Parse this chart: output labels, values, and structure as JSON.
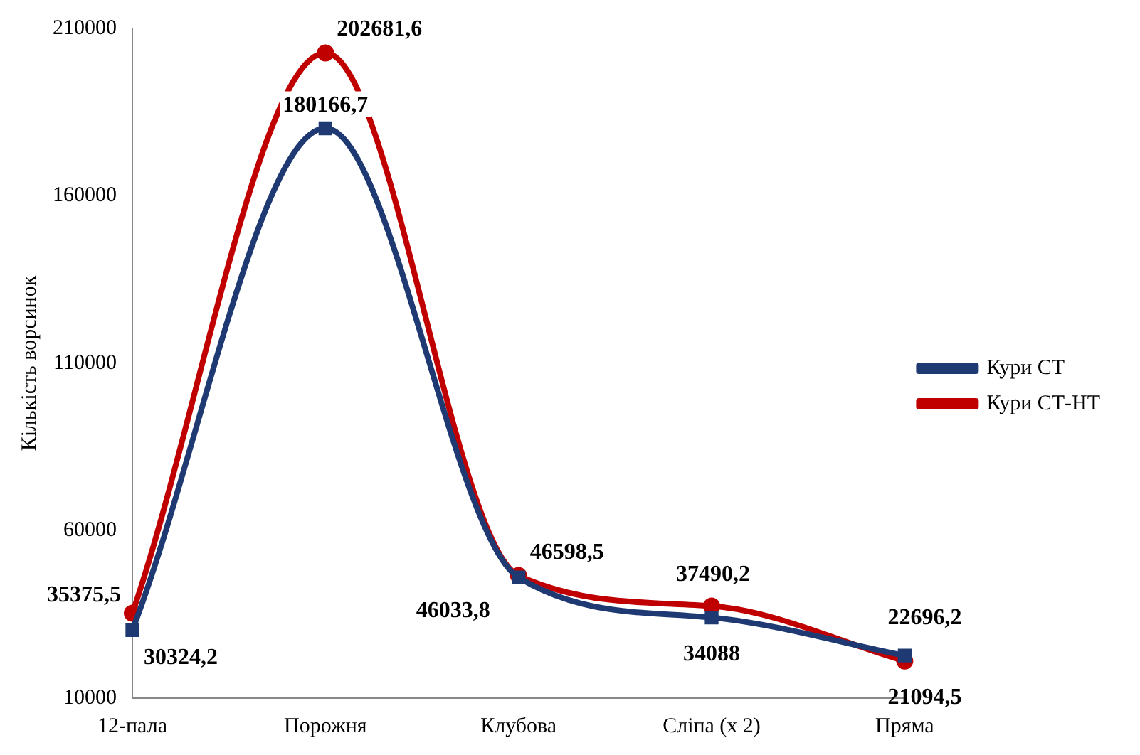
{
  "chart_data": {
    "type": "line",
    "ylabel": "Кількість ворсинок",
    "categories": [
      "12-пала",
      "Порожня",
      "Клубова",
      "Сліпа (х 2)",
      "Пряма"
    ],
    "series": [
      {
        "name": "Кури СТ",
        "color": "#1f3a73",
        "marker": "square",
        "values": [
          30324.2,
          180166.7,
          46033.8,
          34088,
          22696.2
        ],
        "value_labels": [
          "30324,2",
          "180166,7",
          "46033,8",
          "34088",
          "22696,2"
        ]
      },
      {
        "name": "Кури СТ-НТ",
        "color": "#c00000",
        "marker": "circle",
        "values": [
          35375.5,
          202681.6,
          46598.5,
          37490.2,
          21094.5
        ],
        "value_labels": [
          "35375,5",
          "202681,6",
          "46598,5",
          "37490,2",
          "21094,5"
        ]
      }
    ],
    "ylim": [
      10000,
      210000
    ],
    "yticks": [
      10000,
      60000,
      110000,
      160000,
      210000
    ],
    "grid": false,
    "legend": "right"
  }
}
